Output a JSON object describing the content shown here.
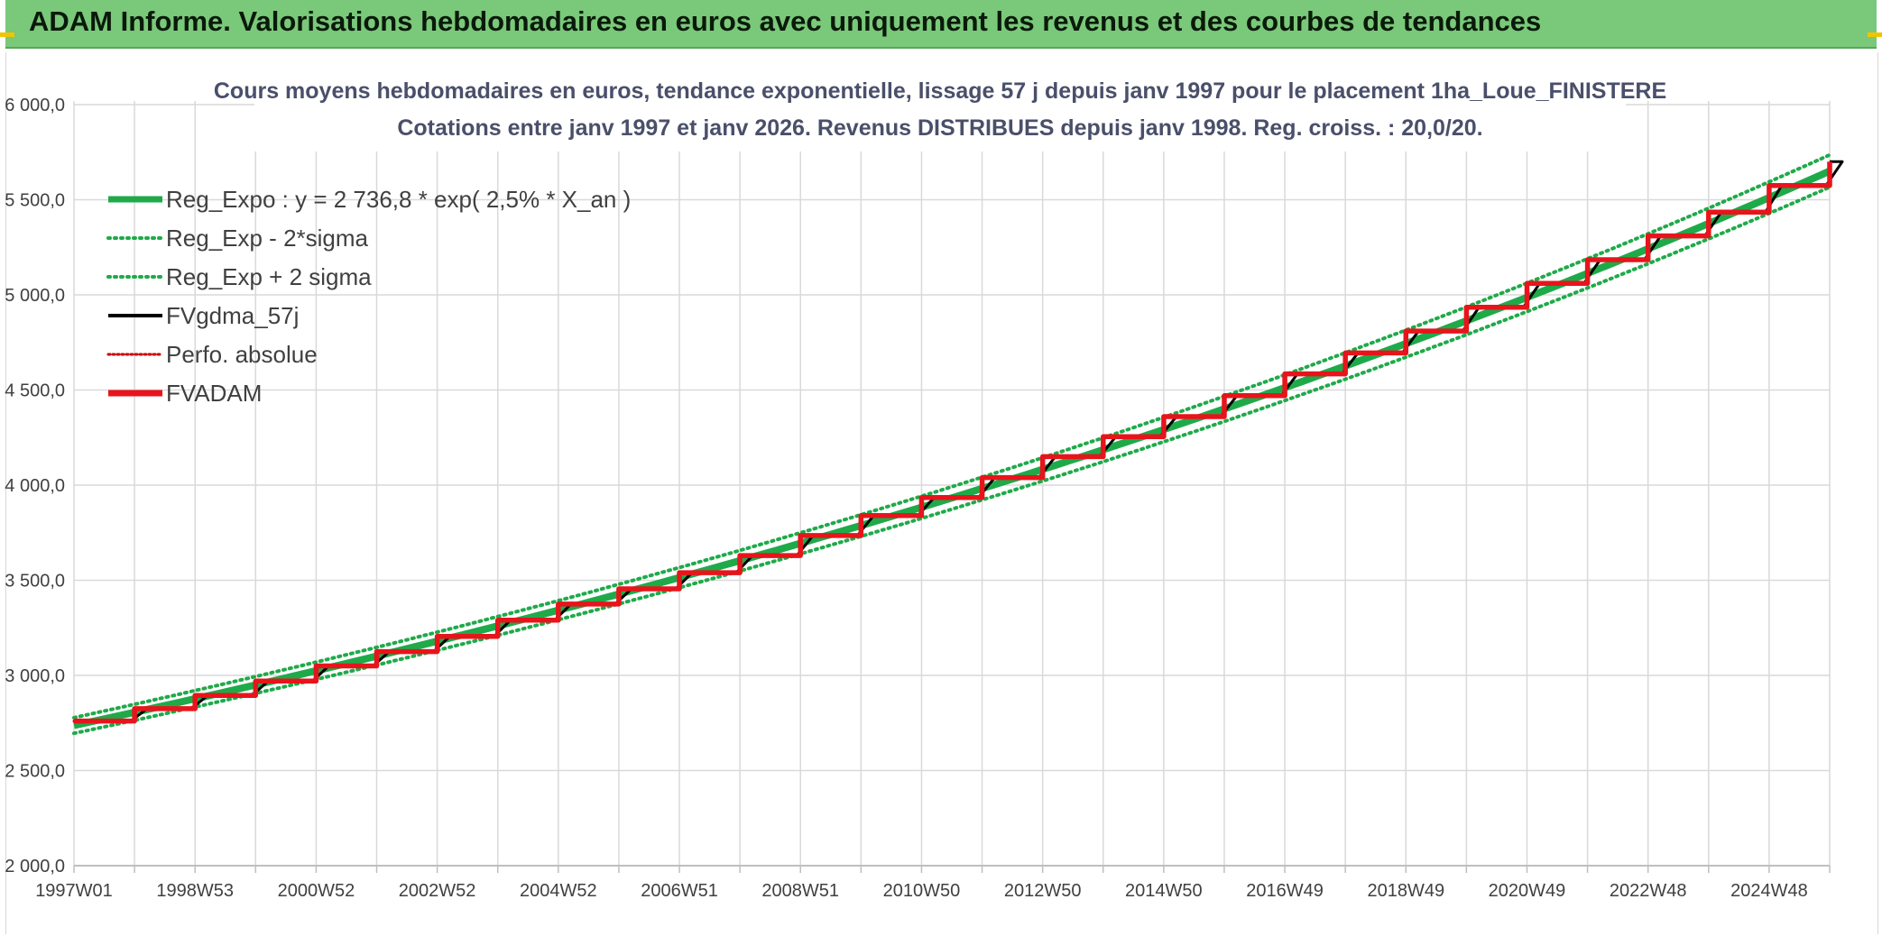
{
  "banner": {
    "title": "ADAM Informe. Valorisations hebdomadaires en euros avec uniquement les revenus et des courbes de tendances"
  },
  "colors": {
    "banner": "#7ac87a",
    "reg_expo": "#1faa4a",
    "sigma_lines": "#1faa4a",
    "fvgdma": "#000000",
    "perfo": "#cc0000",
    "fvadam": "#e8141b",
    "grid": "#d9d9d9"
  },
  "chart_data": {
    "type": "line",
    "title": "Cours moyens hebdomadaires en euros, tendance exponentielle, lissage 57 j depuis janv 1997 pour le placement 1ha_Loue_FINISTERE",
    "subtitle": "Cotations entre janv 1997 et janv 2026. Revenus DISTRIBUES depuis janv 1998. Reg. croiss. : 20,0/20.",
    "x_start_year": 1997,
    "x_end_year": 2026,
    "x_tick_labels": [
      "1997W01",
      "1998W53",
      "2000W52",
      "2002W52",
      "2004W52",
      "2006W51",
      "2008W51",
      "2010W50",
      "2012W50",
      "2014W50",
      "2016W49",
      "2018W49",
      "2020W49",
      "2022W48",
      "2024W48"
    ],
    "y_tick_labels": [
      "2 000,0",
      "2 500,0",
      "3 000,0",
      "3 500,0",
      "4 000,0",
      "4 500,0",
      "5 000,0",
      "5 500,0",
      "6 000,0"
    ],
    "ylim": [
      2000,
      6000
    ],
    "grid": true,
    "legend_position": "top-left",
    "series": [
      {
        "name": "Reg_Expo : y = 2 736,8 * exp( 2,5% *  X_an )",
        "kind": "exp",
        "a": 2736.8,
        "rate": 0.025,
        "factor": 1.0,
        "color": "#1faa4a",
        "style": "solid-thick"
      },
      {
        "name": "Reg_Exp - 2*sigma",
        "kind": "exp",
        "a": 2736.8,
        "rate": 0.025,
        "factor": 0.985,
        "color": "#1faa4a",
        "style": "dotted"
      },
      {
        "name": "Reg_Exp + 2 sigma",
        "kind": "exp",
        "a": 2736.8,
        "rate": 0.025,
        "factor": 1.015,
        "color": "#1faa4a",
        "style": "dotted"
      },
      {
        "name": "FVgdma_57j",
        "kind": "smoothed",
        "color": "#000000",
        "style": "solid"
      },
      {
        "name": "Perfo. absolue",
        "kind": "step",
        "color": "#cc0000",
        "style": "dotted"
      },
      {
        "name": "FVADAM",
        "kind": "step",
        "color": "#e8141b",
        "style": "solid-thick"
      }
    ],
    "step_levels": [
      {
        "year": 1997,
        "value": 2760
      },
      {
        "year": 1998,
        "value": 2825
      },
      {
        "year": 1999,
        "value": 2895
      },
      {
        "year": 2000,
        "value": 2970
      },
      {
        "year": 2001,
        "value": 3050
      },
      {
        "year": 2002,
        "value": 3125
      },
      {
        "year": 2003,
        "value": 3205
      },
      {
        "year": 2004,
        "value": 3290
      },
      {
        "year": 2005,
        "value": 3375
      },
      {
        "year": 2006,
        "value": 3455
      },
      {
        "year": 2007,
        "value": 3540
      },
      {
        "year": 2008,
        "value": 3630
      },
      {
        "year": 2009,
        "value": 3735
      },
      {
        "year": 2010,
        "value": 3840
      },
      {
        "year": 2011,
        "value": 3935
      },
      {
        "year": 2012,
        "value": 4040
      },
      {
        "year": 2013,
        "value": 4150
      },
      {
        "year": 2014,
        "value": 4255
      },
      {
        "year": 2015,
        "value": 4360
      },
      {
        "year": 2016,
        "value": 4470
      },
      {
        "year": 2017,
        "value": 4585
      },
      {
        "year": 2018,
        "value": 4695
      },
      {
        "year": 2019,
        "value": 4810
      },
      {
        "year": 2020,
        "value": 4935
      },
      {
        "year": 2021,
        "value": 5060
      },
      {
        "year": 2022,
        "value": 5185
      },
      {
        "year": 2023,
        "value": 5310
      },
      {
        "year": 2024,
        "value": 5435
      },
      {
        "year": 2025,
        "value": 5575
      },
      {
        "year": 2026,
        "value": 5700
      }
    ]
  }
}
